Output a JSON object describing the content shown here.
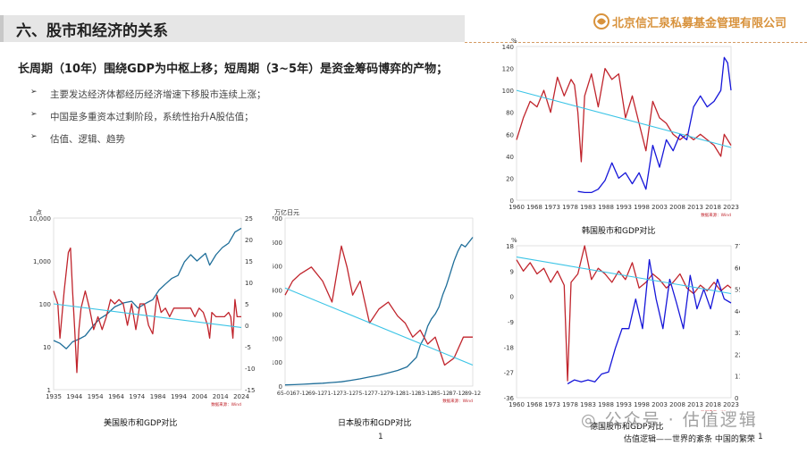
{
  "header": {
    "title": "六、股市和经济的关系",
    "logo_text": "北京信汇泉私募基金管理有限公司"
  },
  "content": {
    "heading": "长周期（10年）围绕GDP为中枢上移；短周期（3~5年）是资金筹码博弈的产物；",
    "bullets": [
      "主要发达经济体都经历经济增速下移股市连续上涨；",
      "中国是多重资本过剩阶段，系统性抬升A股估值；",
      "估值、逻辑、趋势"
    ]
  },
  "captions": {
    "us": "美国股市和GDP对比",
    "japan": "日本股市和GDP对比",
    "korea": "韩国股市和GDP对比",
    "germany": "德国股市和GDP对比"
  },
  "footer": {
    "page_number": "1",
    "page_number_right": "1",
    "book_text": "估值逻辑——世界的紊条  中国的繁荣"
  },
  "watermark": "公众号 · 估值逻辑",
  "chart_data": [
    {
      "id": "us",
      "type": "line",
      "y_unit": "点",
      "y_scale": "log",
      "y_ticks": [
        "10,000",
        "1,000",
        "100",
        "10",
        "1"
      ],
      "y2_ticks": [
        "25",
        "20",
        "15",
        "10",
        "5",
        "0",
        "-5",
        "-10",
        "-15"
      ],
      "x_ticks": [
        "1935",
        "1944",
        "1954",
        "1964",
        "1974",
        "1984",
        "1994",
        "2004",
        "2014",
        "2024"
      ],
      "ylim": [
        1,
        10000
      ],
      "y2lim": [
        -15,
        25
      ],
      "xlim": [
        1935,
        2024
      ],
      "source": "数据来源：Wind",
      "series": [
        {
          "color": "#1f6e99",
          "axis": "left",
          "x": [
            1935,
            1938,
            1941,
            1944,
            1947,
            1950,
            1954,
            1957,
            1960,
            1964,
            1968,
            1972,
            1975,
            1979,
            1982,
            1985,
            1988,
            1991,
            1994,
            1997,
            2000,
            2003,
            2007,
            2009,
            2012,
            2015,
            2018,
            2021,
            2024
          ],
          "y": [
            14,
            12,
            9,
            13,
            15,
            18,
            32,
            45,
            56,
            85,
            105,
            115,
            80,
            105,
            125,
            210,
            290,
            390,
            460,
            950,
            1400,
            1000,
            1500,
            800,
            1400,
            2050,
            2600,
            4700,
            5800
          ]
        },
        {
          "color": "#c0242c",
          "axis": "right",
          "x": [
            1935,
            1937,
            1938,
            1940,
            1942,
            1943,
            1944,
            1945,
            1946,
            1947,
            1948,
            1950,
            1952,
            1954,
            1956,
            1958,
            1960,
            1962,
            1964,
            1966,
            1968,
            1970,
            1972,
            1974,
            1976,
            1978,
            1980,
            1982,
            1984,
            1986,
            1988,
            1990,
            1992,
            1994,
            1996,
            1998,
            2000,
            2002,
            2004,
            2006,
            2008,
            2009,
            2010,
            2012,
            2014,
            2016,
            2018,
            2019,
            2020,
            2021,
            2022,
            2024
          ],
          "y": [
            8,
            5,
            -3,
            8,
            17,
            18,
            8,
            -1,
            -11,
            -1,
            4,
            8,
            4,
            -1,
            2,
            -1,
            2,
            6,
            5,
            6,
            5,
            0,
            5,
            -1,
            5,
            5,
            0,
            -2,
            7,
            3,
            4,
            2,
            4,
            4,
            4,
            4,
            4,
            2,
            4,
            3,
            0,
            -3,
            3,
            2,
            2,
            2,
            3,
            2,
            -3,
            6,
            2,
            2
          ]
        },
        {
          "color": "#3bc4e6",
          "axis": "right",
          "x": [
            1935,
            2024
          ],
          "y": [
            5,
            -0.5
          ]
        }
      ]
    },
    {
      "id": "japan",
      "type": "line",
      "y_unit": "万亿日元",
      "y_ticks": [
        "700",
        "600",
        "500",
        "400",
        "300",
        "200",
        "100",
        "0"
      ],
      "x_ticks": [
        "65-01",
        "67-12",
        "69-12",
        "71-12",
        "73-12",
        "75-12",
        "77-12",
        "79-12",
        "81-12",
        "83-12",
        "85-12",
        "87-12",
        "89-12"
      ],
      "ylim": [
        0,
        700
      ],
      "source": "数据来源：Wind",
      "series": [
        {
          "color": "#1f6e99",
          "axis": "left",
          "x": [
            0,
            5,
            10,
            15,
            20,
            25,
            30,
            35,
            40,
            45,
            50,
            55,
            60,
            65,
            70,
            72,
            74,
            76,
            78,
            80,
            82,
            84,
            86,
            88,
            90,
            92,
            94,
            96,
            98,
            100
          ],
          "y": [
            5,
            6,
            8,
            10,
            12,
            15,
            18,
            24,
            30,
            38,
            45,
            55,
            65,
            80,
            120,
            170,
            200,
            250,
            280,
            300,
            330,
            380,
            420,
            470,
            520,
            560,
            590,
            580,
            600,
            620
          ]
        },
        {
          "color": "#c0242c",
          "axis": "right",
          "x": [
            0,
            4,
            8,
            14,
            20,
            25,
            30,
            33,
            36,
            40,
            45,
            50,
            55,
            60,
            64,
            68,
            72,
            76,
            80,
            85,
            90,
            95,
            100
          ],
          "y": [
            9,
            11,
            12,
            13,
            11,
            8,
            16,
            13,
            9,
            11,
            5,
            7,
            8,
            6,
            5,
            3,
            4,
            2,
            3,
            -1,
            0,
            3,
            3
          ]
        },
        {
          "color": "#3bc4e6",
          "axis": "right",
          "x": [
            0,
            100
          ],
          "y": [
            10,
            -1
          ]
        }
      ]
    },
    {
      "id": "korea",
      "type": "line",
      "y_unit": "%",
      "y_ticks": [
        "140",
        "120",
        "100",
        "80",
        "60",
        "40",
        "20",
        "0"
      ],
      "x_ticks": [
        "1960",
        "1968",
        "1973",
        "1978",
        "1983",
        "1988",
        "1993",
        "1998",
        "2003",
        "2008",
        "2013",
        "2018",
        "2023"
      ],
      "ylim": [
        0,
        140
      ],
      "xlim": [
        1960,
        2023
      ],
      "source": "数据来源：Wind",
      "series": [
        {
          "color": "#c0242c",
          "axis": "left",
          "x": [
            1960,
            1962,
            1964,
            1966,
            1968,
            1970,
            1972,
            1974,
            1976,
            1977,
            1978,
            1979,
            1980,
            1982,
            1984,
            1986,
            1988,
            1990,
            1992,
            1994,
            1996,
            1998,
            2000,
            2002,
            2004,
            2006,
            2008,
            2010,
            2012,
            2014,
            2016,
            2018,
            2020,
            2021,
            2023
          ],
          "y": [
            55,
            75,
            90,
            85,
            100,
            80,
            112,
            95,
            110,
            105,
            80,
            35,
            95,
            115,
            85,
            120,
            110,
            115,
            75,
            95,
            70,
            45,
            90,
            75,
            70,
            60,
            55,
            60,
            55,
            60,
            55,
            50,
            40,
            60,
            50
          ]
        },
        {
          "color": "#1616d9",
          "axis": "right",
          "x": [
            1978,
            1980,
            1982,
            1984,
            1986,
            1988,
            1990,
            1992,
            1994,
            1996,
            1998,
            2000,
            2002,
            2004,
            2006,
            2008,
            2010,
            2012,
            2014,
            2016,
            2018,
            2020,
            2021,
            2022,
            2023
          ],
          "y": [
            8,
            7,
            7,
            10,
            18,
            34,
            20,
            25,
            15,
            25,
            10,
            50,
            30,
            55,
            45,
            60,
            55,
            85,
            95,
            85,
            90,
            100,
            130,
            125,
            100
          ]
        },
        {
          "color": "#3bc4e6",
          "axis": "left",
          "x": [
            1960,
            2023
          ],
          "y": [
            100,
            48
          ]
        }
      ]
    },
    {
      "id": "germany",
      "type": "line",
      "y_unit": "%",
      "y_ticks": [
        "18",
        "9",
        "0",
        "-9",
        "-18",
        "-27",
        "-36"
      ],
      "y2_ticks": [
        "77",
        "66",
        "55",
        "44",
        "33",
        "22",
        "11",
        "0"
      ],
      "x_ticks": [
        "1960",
        "1968",
        "1973",
        "1978",
        "1983",
        "1988",
        "1993",
        "1998",
        "2003",
        "2008",
        "2013",
        "2018",
        "2023"
      ],
      "ylim": [
        -36,
        18
      ],
      "y2lim": [
        0,
        77
      ],
      "xlim": [
        1960,
        2023
      ],
      "source": "数据来源：Wind",
      "series": [
        {
          "color": "#c0242c",
          "axis": "left",
          "x": [
            1960,
            1962,
            1964,
            1966,
            1968,
            1970,
            1972,
            1974,
            1975,
            1976,
            1978,
            1980,
            1982,
            1984,
            1986,
            1988,
            1990,
            1992,
            1994,
            1996,
            1998,
            2000,
            2002,
            2004,
            2006,
            2008,
            2010,
            2012,
            2014,
            2016,
            2018,
            2020,
            2022,
            2023
          ],
          "y": [
            13,
            9,
            12,
            8,
            10,
            5,
            9,
            4,
            -30,
            5,
            8,
            18,
            6,
            10,
            8,
            5,
            9,
            6,
            12,
            3,
            5,
            8,
            6,
            3,
            5,
            8,
            3,
            1,
            4,
            2,
            5,
            2,
            4,
            3
          ]
        },
        {
          "color": "#1616d9",
          "axis": "right",
          "x": [
            1975,
            1977,
            1979,
            1981,
            1983,
            1985,
            1987,
            1989,
            1991,
            1993,
            1995,
            1997,
            1999,
            2001,
            2003,
            2005,
            2007,
            2009,
            2011,
            2013,
            2015,
            2017,
            2019,
            2021,
            2023
          ],
          "y": [
            7,
            9,
            8,
            9,
            8,
            12,
            13,
            25,
            35,
            35,
            50,
            35,
            70,
            50,
            35,
            60,
            48,
            35,
            62,
            45,
            55,
            45,
            60,
            50,
            48
          ]
        },
        {
          "color": "#3bc4e6",
          "axis": "left",
          "x": [
            1960,
            2023
          ],
          "y": [
            14,
            1
          ]
        }
      ]
    }
  ]
}
